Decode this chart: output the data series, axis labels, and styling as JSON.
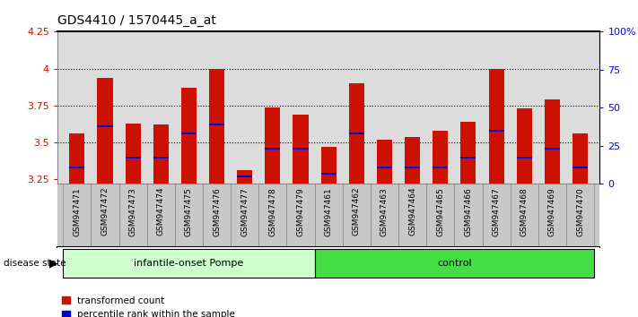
{
  "title": "GDS4410 / 1570445_a_at",
  "samples": [
    "GSM947471",
    "GSM947472",
    "GSM947473",
    "GSM947474",
    "GSM947475",
    "GSM947476",
    "GSM947477",
    "GSM947478",
    "GSM947479",
    "GSM947461",
    "GSM947462",
    "GSM947463",
    "GSM947464",
    "GSM947465",
    "GSM947466",
    "GSM947467",
    "GSM947468",
    "GSM947469",
    "GSM947470"
  ],
  "transformed_counts": [
    3.56,
    3.94,
    3.63,
    3.62,
    3.87,
    4.0,
    3.31,
    3.74,
    3.69,
    3.47,
    3.9,
    3.52,
    3.54,
    3.58,
    3.64,
    4.0,
    3.73,
    3.79,
    3.56
  ],
  "percentile_values": [
    3.33,
    3.61,
    3.4,
    3.4,
    3.56,
    3.62,
    3.27,
    3.46,
    3.46,
    3.29,
    3.56,
    3.33,
    3.33,
    3.33,
    3.4,
    3.58,
    3.4,
    3.46,
    3.33
  ],
  "groups": [
    "infantile-onset Pompe",
    "infantile-onset Pompe",
    "infantile-onset Pompe",
    "infantile-onset Pompe",
    "infantile-onset Pompe",
    "infantile-onset Pompe",
    "infantile-onset Pompe",
    "infantile-onset Pompe",
    "infantile-onset Pompe",
    "control",
    "control",
    "control",
    "control",
    "control",
    "control",
    "control",
    "control",
    "control",
    "control"
  ],
  "bar_color": "#CC1100",
  "percentile_color": "#0000CC",
  "ylim_left": [
    3.22,
    4.25
  ],
  "ylim_right": [
    0,
    100
  ],
  "yticks_left": [
    3.25,
    3.5,
    3.75,
    4.0,
    4.25
  ],
  "ytick_labels_left": [
    "3.25",
    "3.5",
    "3.75",
    "4",
    "4.25"
  ],
  "yticks_right": [
    0,
    25,
    50,
    75,
    100
  ],
  "ytick_labels_right": [
    "0",
    "25",
    "50",
    "75",
    "100%"
  ],
  "grid_values": [
    3.5,
    3.75,
    4.0
  ],
  "plot_bg_color": "#DCDCDC",
  "xlabel_bg_color": "#C8C8C8",
  "light_green": "#CCFFCC",
  "bright_green": "#44DD44",
  "bar_width": 0.55
}
